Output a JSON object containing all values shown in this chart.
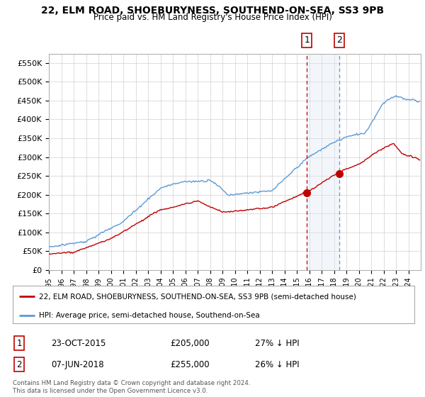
{
  "title": "22, ELM ROAD, SHOEBURYNESS, SOUTHEND-ON-SEA, SS3 9PB",
  "subtitle": "Price paid vs. HM Land Registry's House Price Index (HPI)",
  "ylim": [
    0,
    575000
  ],
  "yticks": [
    0,
    50000,
    100000,
    150000,
    200000,
    250000,
    300000,
    350000,
    400000,
    450000,
    500000,
    550000
  ],
  "ytick_labels": [
    "£0",
    "£50K",
    "£100K",
    "£150K",
    "£200K",
    "£250K",
    "£300K",
    "£350K",
    "£400K",
    "£450K",
    "£500K",
    "£550K"
  ],
  "hpi_color": "#5b9bd5",
  "price_color": "#c00000",
  "shading_color": "#dce6f1",
  "marker1_date": 2015.82,
  "marker1_price": 205000,
  "marker2_date": 2018.44,
  "marker2_price": 255000,
  "vline1_color": "#c00000",
  "vline2_color": "#5b9bd5",
  "legend_label1": "22, ELM ROAD, SHOEBURYNESS, SOUTHEND-ON-SEA, SS3 9PB (semi-detached house)",
  "legend_label2": "HPI: Average price, semi-detached house, Southend-on-Sea",
  "table_row1": [
    "1",
    "23-OCT-2015",
    "£205,000",
    "27% ↓ HPI"
  ],
  "table_row2": [
    "2",
    "07-JUN-2018",
    "£255,000",
    "26% ↓ HPI"
  ],
  "footnote": "Contains HM Land Registry data © Crown copyright and database right 2024.\nThis data is licensed under the Open Government Licence v3.0.",
  "background_color": "#ffffff",
  "grid_color": "#d0d0d0"
}
